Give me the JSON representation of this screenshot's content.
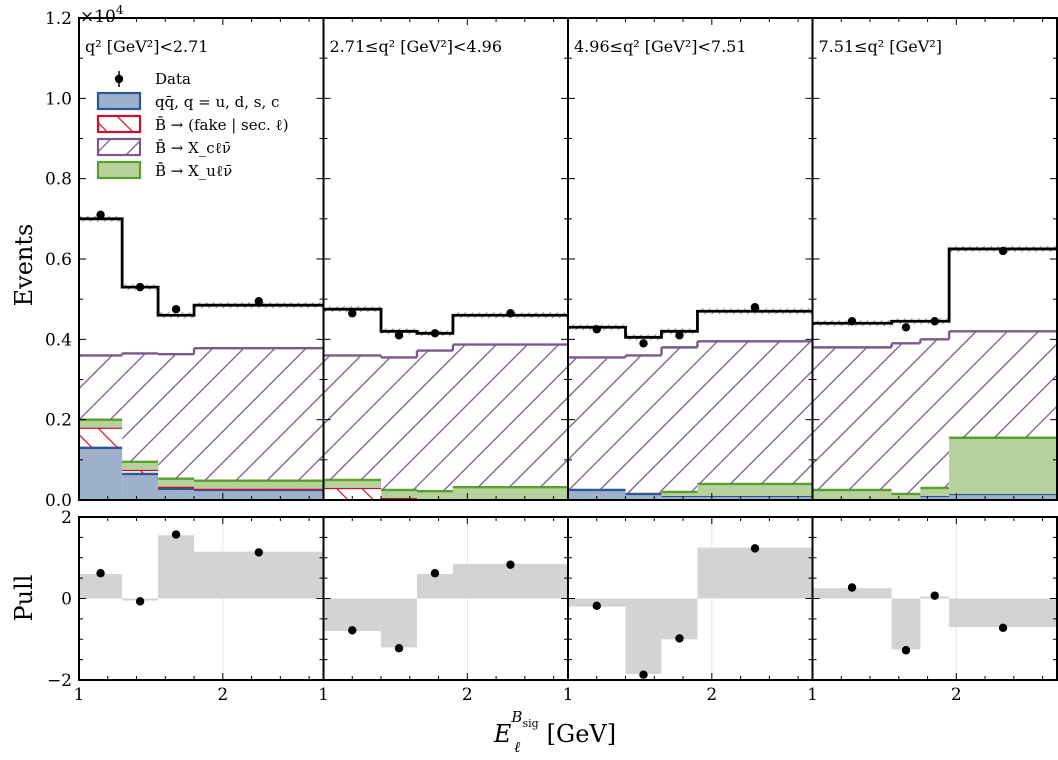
{
  "chart_data": {
    "type": "bar",
    "ylabel_top": "Events",
    "ylabel_bottom": "Pull",
    "xlabel": "E_ℓ^{B_sig} [GeV]",
    "xlabel_main": "E",
    "xlabel_sub": "ℓ",
    "xlabel_sup": "B",
    "xlabel_supsub": "sig",
    "xlabel_unit": "[GeV]",
    "scale_label": "×10",
    "scale_exp": "4",
    "ylim_top": [
      0,
      12000
    ],
    "ylim_bottom": [
      -2,
      2
    ],
    "xlim": [
      1.0,
      2.7
    ],
    "x_ticks": [
      "1",
      "2"
    ],
    "y_ticks_top": [
      "0.0",
      "0.2",
      "0.4",
      "0.6",
      "0.8",
      "1.0",
      "1.2"
    ],
    "y_ticks_bottom": [
      "−2",
      "0",
      "2"
    ],
    "legend": {
      "placement": "top-left",
      "entries": [
        {
          "key": "data",
          "label": "Data"
        },
        {
          "key": "qq",
          "label": "qq̄, q = u, d, s, c"
        },
        {
          "key": "fake",
          "label": "B̄ → (fake | sec. ℓ)"
        },
        {
          "key": "xc",
          "label": "B̄ → X_cℓν̄"
        },
        {
          "key": "xu",
          "label": "B̄ → X_uℓν̄"
        }
      ]
    },
    "colors": {
      "qq_fill": "#9db0cc",
      "qq_edge": "#2e5894",
      "fake_edge": "#c8102e",
      "xc_edge": "#7b5a8a",
      "xu_fill": "#b5d19c",
      "xu_edge": "#5aa02c",
      "total": "#000000",
      "pull_band": "#d3d3d3"
    },
    "panels": [
      {
        "label": "q² [GeV²]<2.71",
        "bin_edges": [
          1.0,
          1.3,
          1.55,
          1.8,
          2.7
        ],
        "qq": [
          1300,
          650,
          280,
          250
        ],
        "fake": [
          500,
          100,
          50,
          30
        ],
        "xu": [
          200,
          200,
          200,
          200
        ],
        "xc": [
          1600,
          2700,
          3100,
          3300
        ],
        "total": [
          7000,
          5300,
          4600,
          4850
        ],
        "data_x": [
          1.15,
          1.425,
          1.675,
          2.25
        ],
        "data_y": [
          7100,
          5300,
          4750,
          4950
        ],
        "pull": [
          0.6,
          -0.05,
          1.55,
          1.15
        ]
      },
      {
        "label": "2.71≤q² [GeV²]<4.96",
        "bin_edges": [
          1.0,
          1.4,
          1.65,
          1.9,
          2.7
        ],
        "qq": [
          0,
          0,
          0,
          0
        ],
        "fake": [
          300,
          50,
          20,
          20
        ],
        "xu": [
          200,
          200,
          200,
          300
        ],
        "xc": [
          3100,
          3300,
          3500,
          3550
        ],
        "total": [
          4750,
          4200,
          4150,
          4600
        ],
        "data_x": [
          1.2,
          1.525,
          1.775,
          2.3
        ],
        "data_y": [
          4650,
          4100,
          4150,
          4650
        ],
        "pull": [
          -0.8,
          -1.2,
          0.6,
          0.85
        ]
      },
      {
        "label": "4.96≤q² [GeV²]<7.51",
        "bin_edges": [
          1.0,
          1.4,
          1.65,
          1.9,
          2.7
        ],
        "qq": [
          250,
          150,
          100,
          100
        ],
        "fake": [
          0,
          0,
          0,
          0
        ],
        "xu": [
          0,
          0,
          100,
          300
        ],
        "xc": [
          3300,
          3450,
          3600,
          3550
        ],
        "total": [
          4300,
          4050,
          4200,
          4700
        ],
        "data_x": [
          1.2,
          1.525,
          1.775,
          2.3
        ],
        "data_y": [
          4250,
          3900,
          4100,
          4800
        ],
        "pull": [
          -0.2,
          -1.85,
          -1.0,
          1.25
        ]
      },
      {
        "label": "7.51≤q² [GeV²]",
        "bin_edges": [
          1.0,
          1.55,
          1.75,
          1.95,
          2.7
        ],
        "qq": [
          0,
          0,
          100,
          150
        ],
        "fake": [
          0,
          0,
          0,
          0
        ],
        "xu": [
          250,
          150,
          200,
          1400
        ],
        "xc": [
          3550,
          3750,
          3700,
          2650
        ],
        "total": [
          4400,
          4450,
          4450,
          6250
        ],
        "data_x": [
          1.275,
          1.65,
          1.85,
          2.325
        ],
        "data_y": [
          4450,
          4300,
          4450,
          6200
        ],
        "pull": [
          0.25,
          -1.25,
          0.05,
          -0.7
        ]
      }
    ]
  }
}
